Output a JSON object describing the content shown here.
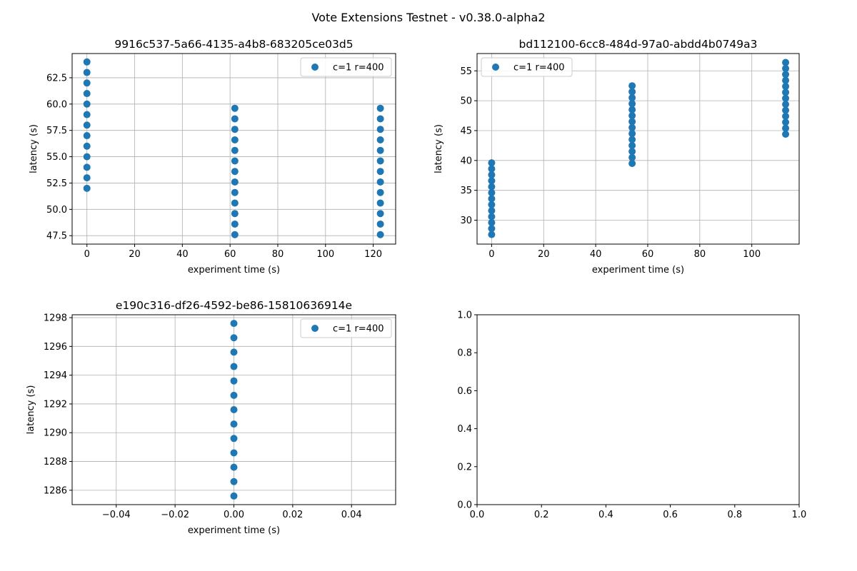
{
  "figure": {
    "suptitle": "Vote Extensions Testnet - v0.38.0-alpha2"
  },
  "colors": {
    "series": "#1f77b4",
    "grid": "#b0b0b0",
    "axes": "#000000"
  },
  "chart_data": [
    {
      "type": "scatter",
      "title": "9916c537-5a66-4135-a4b8-683205ce03d5",
      "xlabel": "experiment time (s)",
      "ylabel": "latency (s)",
      "xlim": [
        -6.2,
        129.4
      ],
      "ylim": [
        46.7,
        64.8
      ],
      "xticks": [
        0,
        20,
        40,
        60,
        80,
        100,
        120
      ],
      "xtick_labels": [
        "0",
        "20",
        "40",
        "60",
        "80",
        "100",
        "120"
      ],
      "yticks": [
        47.5,
        50.0,
        52.5,
        55.0,
        57.5,
        60.0,
        62.5
      ],
      "ytick_labels": [
        "47.5",
        "50.0",
        "52.5",
        "55.0",
        "57.5",
        "60.0",
        "62.5"
      ],
      "grid": true,
      "legend": {
        "placement": "upper right",
        "entries": [
          "c=1 r=400"
        ]
      },
      "series": [
        {
          "name": "c=1 r=400",
          "points": [
            [
              0,
              52
            ],
            [
              0,
              53
            ],
            [
              0,
              54
            ],
            [
              0,
              55
            ],
            [
              0,
              56
            ],
            [
              0,
              57
            ],
            [
              0,
              58
            ],
            [
              0,
              59
            ],
            [
              0,
              60
            ],
            [
              0,
              61
            ],
            [
              0,
              62
            ],
            [
              0,
              63
            ],
            [
              0,
              64
            ],
            [
              62,
              47.6
            ],
            [
              62,
              48.6
            ],
            [
              62,
              49.6
            ],
            [
              62,
              50.6
            ],
            [
              62,
              51.6
            ],
            [
              62,
              52.6
            ],
            [
              62,
              53.6
            ],
            [
              62,
              54.6
            ],
            [
              62,
              55.6
            ],
            [
              62,
              56.6
            ],
            [
              62,
              57.6
            ],
            [
              62,
              58.6
            ],
            [
              62,
              59.6
            ],
            [
              123,
              47.6
            ],
            [
              123,
              48.6
            ],
            [
              123,
              49.6
            ],
            [
              123,
              50.6
            ],
            [
              123,
              51.6
            ],
            [
              123,
              52.6
            ],
            [
              123,
              53.6
            ],
            [
              123,
              54.6
            ],
            [
              123,
              55.6
            ],
            [
              123,
              56.6
            ],
            [
              123,
              57.6
            ],
            [
              123,
              58.6
            ],
            [
              123,
              59.6
            ]
          ]
        }
      ]
    },
    {
      "type": "scatter",
      "title": "bd112100-6cc8-484d-97a0-abdd4b0749a3",
      "xlabel": "experiment time (s)",
      "ylabel": "latency (s)",
      "xlim": [
        -5.6,
        118.2
      ],
      "ylim": [
        26.0,
        57.9
      ],
      "xticks": [
        0,
        20,
        40,
        60,
        80,
        100
      ],
      "xtick_labels": [
        "0",
        "20",
        "40",
        "60",
        "80",
        "100"
      ],
      "yticks": [
        30,
        35,
        40,
        45,
        50,
        55
      ],
      "ytick_labels": [
        "30",
        "35",
        "40",
        "45",
        "50",
        "55"
      ],
      "grid": true,
      "legend": {
        "placement": "upper left",
        "entries": [
          "c=1 r=400"
        ]
      },
      "series": [
        {
          "name": "c=1 r=400",
          "points": [
            [
              0,
              27.6
            ],
            [
              0,
              28.6
            ],
            [
              0,
              29.6
            ],
            [
              0,
              30.6
            ],
            [
              0,
              31.6
            ],
            [
              0,
              32.6
            ],
            [
              0,
              33.6
            ],
            [
              0,
              34.6
            ],
            [
              0,
              35.6
            ],
            [
              0,
              36.6
            ],
            [
              0,
              37.6
            ],
            [
              0,
              38.6
            ],
            [
              0,
              39.6
            ],
            [
              54,
              39.5
            ],
            [
              54,
              40.5
            ],
            [
              54,
              41.5
            ],
            [
              54,
              42.5
            ],
            [
              54,
              43.5
            ],
            [
              54,
              44.5
            ],
            [
              54,
              45.5
            ],
            [
              54,
              46.5
            ],
            [
              54,
              47.5
            ],
            [
              54,
              48.5
            ],
            [
              54,
              49.5
            ],
            [
              54,
              50.5
            ],
            [
              54,
              51.5
            ],
            [
              54,
              52.5
            ],
            [
              113,
              44.4
            ],
            [
              113,
              45.4
            ],
            [
              113,
              46.4
            ],
            [
              113,
              47.4
            ],
            [
              113,
              48.4
            ],
            [
              113,
              49.4
            ],
            [
              113,
              50.4
            ],
            [
              113,
              51.4
            ],
            [
              113,
              52.4
            ],
            [
              113,
              53.4
            ],
            [
              113,
              54.4
            ],
            [
              113,
              55.4
            ],
            [
              113,
              56.4
            ]
          ]
        }
      ]
    },
    {
      "type": "scatter",
      "title": "e190c316-df26-4592-be86-15810636914e",
      "xlabel": "experiment time (s)",
      "ylabel": "latency (s)",
      "xlim": [
        -0.055,
        0.055
      ],
      "ylim": [
        1285.0,
        1298.2
      ],
      "xticks": [
        -0.04,
        -0.02,
        0.0,
        0.02,
        0.04
      ],
      "xtick_labels": [
        "−0.04",
        "−0.02",
        "0.00",
        "0.02",
        "0.04"
      ],
      "yticks": [
        1286,
        1288,
        1290,
        1292,
        1294,
        1296,
        1298
      ],
      "ytick_labels": [
        "1286",
        "1288",
        "1290",
        "1292",
        "1294",
        "1296",
        "1298"
      ],
      "grid": true,
      "legend": {
        "placement": "upper right",
        "entries": [
          "c=1 r=400"
        ]
      },
      "series": [
        {
          "name": "c=1 r=400",
          "points": [
            [
              0,
              1285.6
            ],
            [
              0,
              1286.6
            ],
            [
              0,
              1287.6
            ],
            [
              0,
              1288.6
            ],
            [
              0,
              1289.6
            ],
            [
              0,
              1290.6
            ],
            [
              0,
              1291.6
            ],
            [
              0,
              1292.6
            ],
            [
              0,
              1293.6
            ],
            [
              0,
              1294.6
            ],
            [
              0,
              1295.6
            ],
            [
              0,
              1296.6
            ],
            [
              0,
              1297.6
            ]
          ]
        }
      ]
    },
    {
      "type": "scatter",
      "title": "",
      "xlabel": "",
      "ylabel": "",
      "xlim": [
        0.0,
        1.0
      ],
      "ylim": [
        0.0,
        1.0
      ],
      "xticks": [
        0.0,
        0.2,
        0.4,
        0.6,
        0.8,
        1.0
      ],
      "xtick_labels": [
        "0.0",
        "0.2",
        "0.4",
        "0.6",
        "0.8",
        "1.0"
      ],
      "yticks": [
        0.0,
        0.2,
        0.4,
        0.6,
        0.8,
        1.0
      ],
      "ytick_labels": [
        "0.0",
        "0.2",
        "0.4",
        "0.6",
        "0.8",
        "1.0"
      ],
      "grid": false,
      "legend": null,
      "series": []
    }
  ]
}
